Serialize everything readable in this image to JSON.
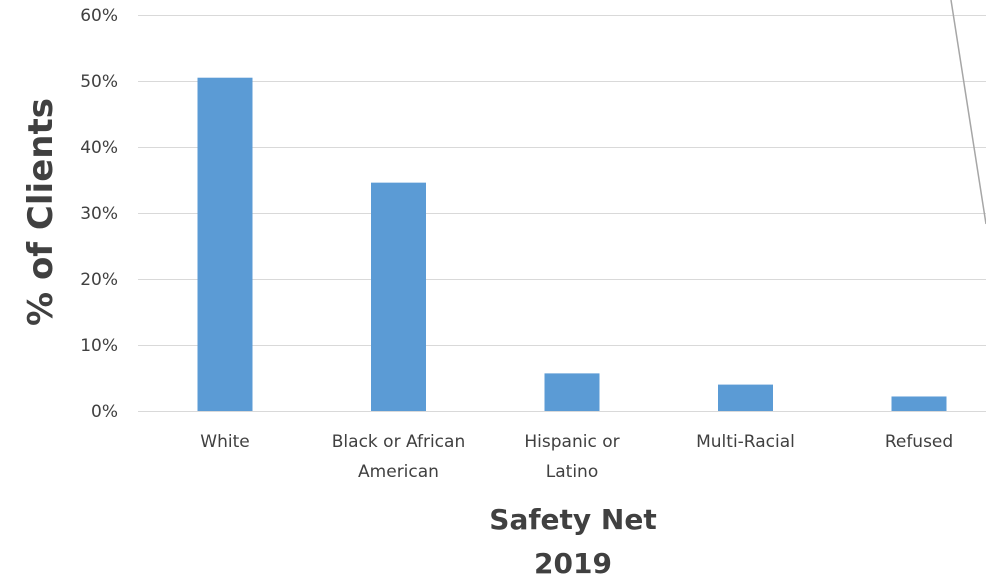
{
  "chart_data": {
    "type": "bar",
    "categories": [
      [
        "White"
      ],
      [
        "Black or African",
        "American"
      ],
      [
        "Hispanic or",
        "Latino"
      ],
      [
        "Multi-Racial"
      ],
      [
        "Refused"
      ]
    ],
    "values": [
      50.5,
      34.6,
      5.7,
      4.0,
      2.2
    ],
    "ylabel": "% of Clients",
    "xlabel": [
      "Safety Net",
      "2019"
    ],
    "ylim": [
      0,
      60
    ],
    "yticks": [
      "0%",
      "10%",
      "20%",
      "30%",
      "40%",
      "50%",
      "60%"
    ],
    "grid": true,
    "bar_color": "#5b9bd5",
    "legend": "none"
  }
}
